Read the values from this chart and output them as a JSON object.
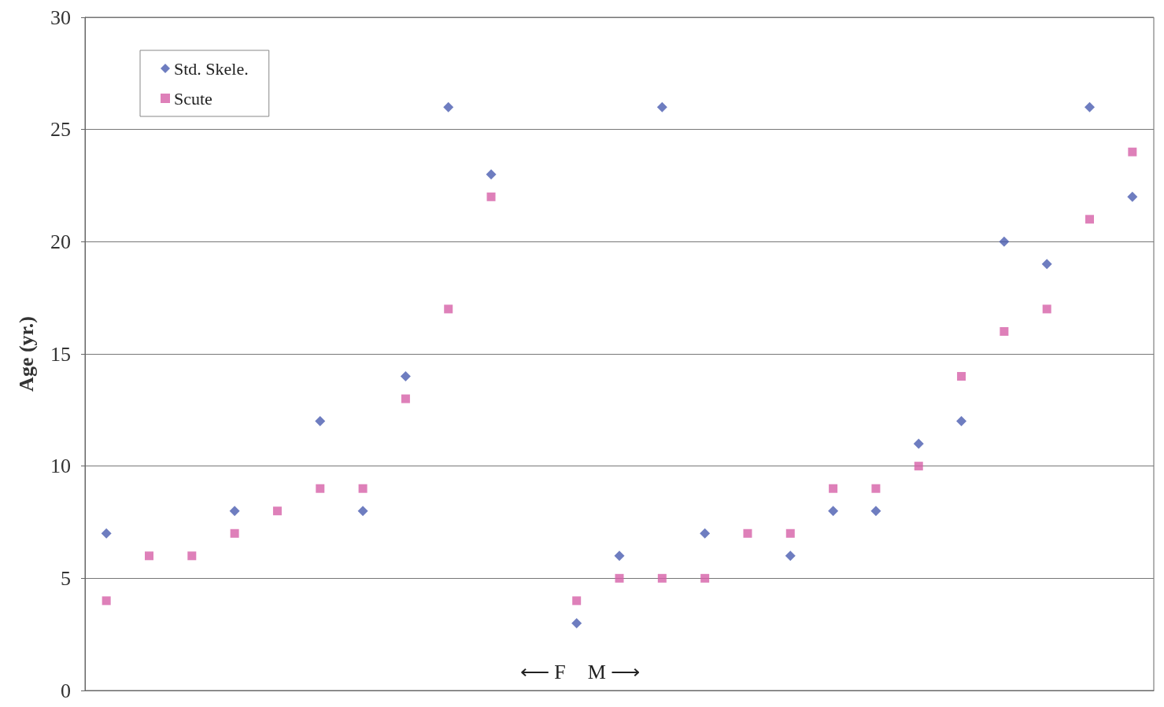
{
  "chart_data": {
    "type": "scatter",
    "ylabel": "Age (yr.)",
    "categories": [
      null,
      null,
      null,
      null,
      null,
      null,
      null,
      null,
      null,
      null,
      null,
      null,
      null,
      null,
      null,
      null,
      null,
      null,
      null,
      null,
      null,
      null,
      null,
      null,
      null
    ],
    "series": [
      {
        "name": "Std. Skele.",
        "color": "#4a5cb0",
        "marker": "diamond",
        "values": [
          7,
          null,
          null,
          8,
          null,
          12,
          8,
          14,
          26,
          23,
          null,
          3,
          6,
          26,
          7,
          null,
          6,
          8,
          8,
          11,
          12,
          20,
          19,
          26,
          22
        ]
      },
      {
        "name": "Scute",
        "color": "#d660a8",
        "marker": "square",
        "values": [
          4,
          6,
          6,
          7,
          8,
          9,
          9,
          13,
          17,
          22,
          null,
          4,
          5,
          5,
          5,
          7,
          7,
          9,
          9,
          10,
          14,
          16,
          17,
          21,
          24
        ]
      }
    ],
    "ylim": [
      0,
      30
    ],
    "yticks": [
      0,
      5,
      10,
      15,
      20,
      25,
      30
    ],
    "grid": "y",
    "legend": "top left",
    "tick_labels": "y",
    "annotations": [
      "⟵ F",
      "M ⟶"
    ]
  }
}
